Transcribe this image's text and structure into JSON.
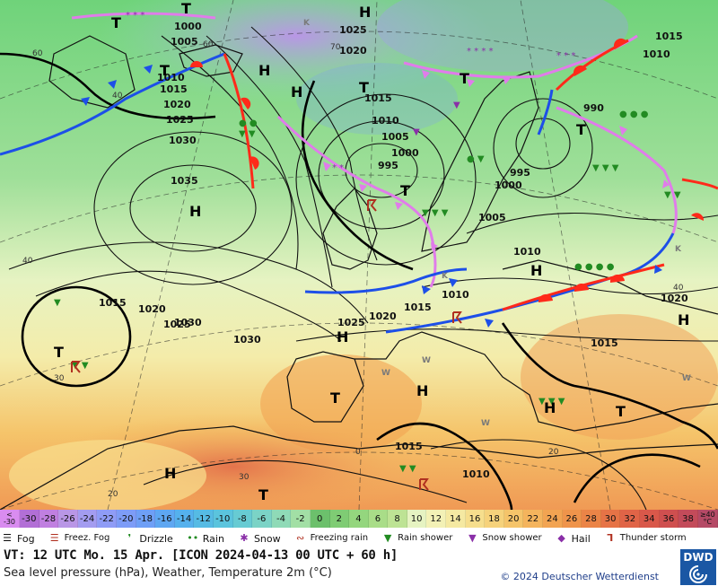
{
  "map": {
    "isobars": [
      "1000",
      "1005",
      "1010",
      "1015",
      "1020",
      "1025",
      "1030",
      "1035",
      "1025",
      "1020",
      "1015",
      "1010",
      "1005",
      "1000",
      "995",
      "990",
      "1025",
      "1030",
      "1020",
      "1015",
      "1010",
      "1005",
      "1000",
      "995",
      "1010",
      "1015",
      "1020",
      "1015",
      "1010",
      "1015",
      "1010",
      "1025",
      "1030",
      "1015",
      "1020"
    ],
    "pressure_centers": [
      "H",
      "H",
      "H",
      "H",
      "H",
      "H",
      "H",
      "H",
      "H",
      "H",
      "T",
      "T",
      "T",
      "T",
      "T",
      "T",
      "T",
      "T",
      "T",
      "T",
      "T"
    ],
    "temp_labels": [
      "60",
      "60",
      "70",
      "40",
      "40",
      "30",
      "20",
      "20",
      "30",
      "0",
      "40"
    ],
    "weather_letters": [
      "W",
      "W",
      "W",
      "W",
      "K",
      "K",
      "K"
    ]
  },
  "scale": {
    "first_label": [
      "<",
      "-30"
    ],
    "values": [
      "-30",
      "-28",
      "-26",
      "-24",
      "-22",
      "-20",
      "-18",
      "-16",
      "-14",
      "-12",
      "-10",
      "-8",
      "-6",
      "-4",
      "-2",
      "0",
      "2",
      "4",
      "6",
      "8",
      "10",
      "12",
      "14",
      "16",
      "18",
      "20",
      "22",
      "24",
      "26",
      "28",
      "30",
      "32",
      "34",
      "36",
      "38"
    ],
    "last_label": [
      "≥40",
      "°C"
    ],
    "colors": [
      "#b26fd6",
      "#c07fe0",
      "#b996e6",
      "#a39cf0",
      "#8f9cf6",
      "#7d9cf7",
      "#6e9ff6",
      "#5ea7f2",
      "#55b1ed",
      "#56bbe4",
      "#5bc4dd",
      "#67cbd3",
      "#7bd3c6",
      "#8fdab7",
      "#a2dfa5",
      "#6cc06c",
      "#7fcc74",
      "#94d67e",
      "#a9dd88",
      "#bde394",
      "#e6f3c2",
      "#f3f1b6",
      "#f5e9a2",
      "#f6de8d",
      "#f6d27b",
      "#f5c46a",
      "#f4b45d",
      "#f2a452",
      "#ef944b",
      "#eb8447",
      "#e67346",
      "#e06447",
      "#d9584a",
      "#cf4f4f",
      "#c34b5a"
    ],
    "first_color": "#d98cf0",
    "last_color": "#b54a66"
  },
  "legend": [
    {
      "icon": "fog-icon",
      "label": "Fog"
    },
    {
      "icon": "freezing-fog-icon",
      "label": "Freez. Fog"
    },
    {
      "icon": "drizzle-icon",
      "label": "Drizzle"
    },
    {
      "icon": "rain-icon",
      "label": "Rain"
    },
    {
      "icon": "snow-icon",
      "label": "Snow"
    },
    {
      "icon": "freezing-rain-icon",
      "label": "Freezing rain"
    },
    {
      "icon": "rain-shower-icon",
      "label": "Rain shower"
    },
    {
      "icon": "snow-shower-icon",
      "label": "Snow shower"
    },
    {
      "icon": "hail-icon",
      "label": "Hail"
    },
    {
      "icon": "thunderstorm-icon",
      "label": "Thunder storm"
    }
  ],
  "info": {
    "line1": "VT: 12 UTC Mo.  15 Apr. [ICON 2024-04-13  00 UTC + 60 h]",
    "line2": "Sea level pressure (hPa), Weather, Temperature 2m (°C)",
    "copyright": "© 2024 Deutscher Wetterdienst",
    "logo": "DWD"
  }
}
